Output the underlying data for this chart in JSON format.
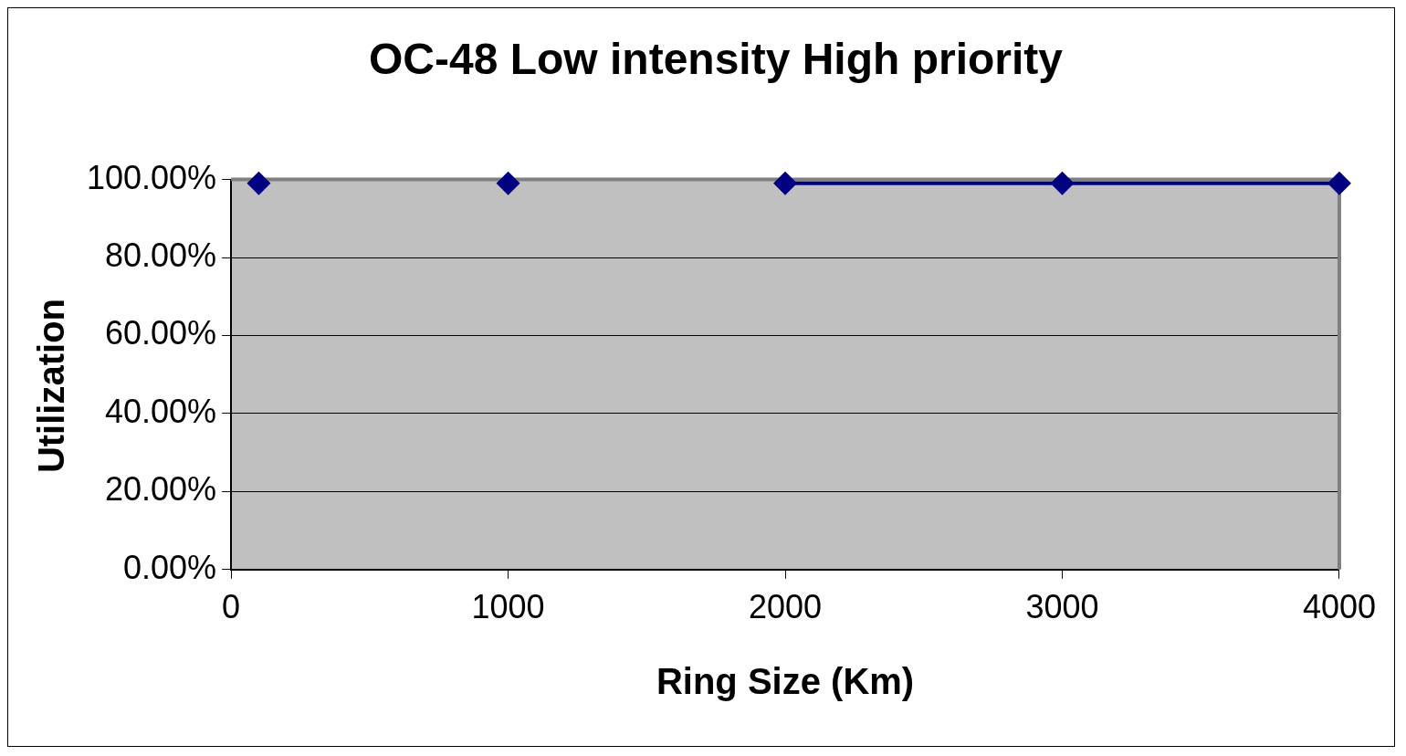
{
  "chart_data": {
    "type": "line",
    "title": "OC-48 Low intensity High priority",
    "xlabel": "Ring Size (Km)",
    "ylabel": "Utilization",
    "series": [
      {
        "type": "scatter",
        "color": "#000080",
        "x": [
          100,
          1000
        ],
        "values": [
          99,
          99
        ]
      },
      {
        "type": "line",
        "color": "#000080",
        "x": [
          2000,
          3000,
          4000
        ],
        "values": [
          99,
          99,
          99
        ]
      }
    ],
    "xlim": [
      0,
      4000
    ],
    "xticks": [
      0,
      1000,
      2000,
      3000,
      4000
    ],
    "ylim": [
      0,
      100
    ],
    "yticks": [
      {
        "value": 0,
        "label": "0.00%"
      },
      {
        "value": 20,
        "label": "20.00%"
      },
      {
        "value": 40,
        "label": "40.00%"
      },
      {
        "value": 60,
        "label": "60.00%"
      },
      {
        "value": 80,
        "label": "80.00%"
      },
      {
        "value": 100,
        "label": "100.00%"
      }
    ],
    "grid": "y",
    "marker": "diamond"
  }
}
